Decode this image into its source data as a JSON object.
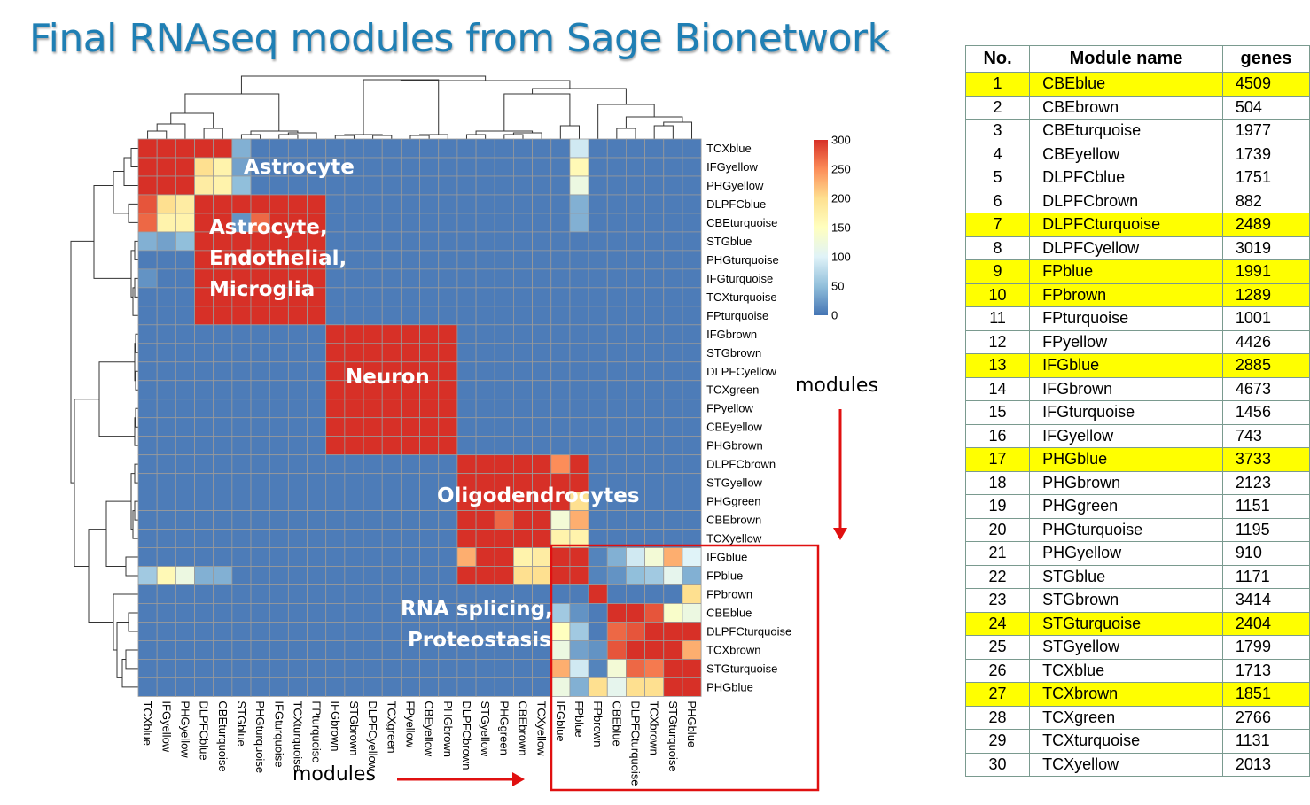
{
  "page": {
    "title": "Final RNAseq modules from Sage Bionetwork",
    "annotations": {
      "astrocyte": "Astrocyte",
      "astro_endo_line1": "Astrocyte,",
      "astro_endo_line2": "Endothelial,",
      "astro_endo_line3": "Microglia",
      "neuron": "Neuron",
      "oligo": "Oligodendrocytes",
      "rna_line1": "RNA splicing,",
      "rna_line2": "Proteostasis",
      "modules_right": "modules",
      "modules_bottom": "modules"
    },
    "colors": {
      "title": "#1f7fb4",
      "highlight_box": "#e01010",
      "arrow": "#e01010",
      "row_highlight": "#ffff00"
    }
  },
  "chart_data": {
    "type": "heatmap",
    "labels": [
      "TCXblue",
      "IFGyellow",
      "PHGyellow",
      "DLPFCblue",
      "CBEturquoise",
      "STGblue",
      "PHGturquoise",
      "IFGturquoise",
      "TCXturquoise",
      "FPturquoise",
      "IFGbrown",
      "STGbrown",
      "DLPFCyellow",
      "TCXgreen",
      "FPyellow",
      "CBEyellow",
      "PHGbrown",
      "DLPFCbrown",
      "STGyellow",
      "PHGgreen",
      "CBEbrown",
      "TCXyellow",
      "IFGblue",
      "FPblue",
      "FPbrown",
      "CBEblue",
      "DLPFCturquoise",
      "TCXbrown",
      "STGturquoise",
      "PHGblue"
    ],
    "colorbar": {
      "ticks": [
        300,
        250,
        200,
        150,
        100,
        50,
        0
      ],
      "min": 0,
      "max": 300,
      "colors": [
        "#4575b4",
        "#91bfdb",
        "#e0f3f8",
        "#ffffbf",
        "#fee090",
        "#fc8d59",
        "#d73027"
      ]
    },
    "background_value": 5,
    "blocks": [
      {
        "rows": [
          0,
          4
        ],
        "cols": [
          0,
          4
        ],
        "value": 300
      },
      {
        "rows": [
          3,
          9
        ],
        "cols": [
          3,
          9
        ],
        "value": 300
      },
      {
        "rows": [
          10,
          16
        ],
        "cols": [
          10,
          16
        ],
        "value": 300
      },
      {
        "rows": [
          17,
          23
        ],
        "cols": [
          17,
          23
        ],
        "value": 300
      },
      {
        "rows": [
          25,
          29
        ],
        "cols": [
          25,
          29
        ],
        "value": 300
      }
    ],
    "cells": [
      {
        "r": 0,
        "c": 5,
        "v": 40
      },
      {
        "r": 0,
        "c": 23,
        "v": 90
      },
      {
        "r": 1,
        "c": 3,
        "v": 200
      },
      {
        "r": 1,
        "c": 4,
        "v": 170
      },
      {
        "r": 1,
        "c": 5,
        "v": 30
      },
      {
        "r": 1,
        "c": 23,
        "v": 160
      },
      {
        "r": 2,
        "c": 3,
        "v": 180
      },
      {
        "r": 2,
        "c": 4,
        "v": 170
      },
      {
        "r": 2,
        "c": 5,
        "v": 50
      },
      {
        "r": 2,
        "c": 23,
        "v": 120
      },
      {
        "r": 3,
        "c": 0,
        "v": 280
      },
      {
        "r": 3,
        "c": 1,
        "v": 200
      },
      {
        "r": 3,
        "c": 2,
        "v": 180
      },
      {
        "r": 3,
        "c": 23,
        "v": 40
      },
      {
        "r": 4,
        "c": 0,
        "v": 270
      },
      {
        "r": 4,
        "c": 1,
        "v": 170
      },
      {
        "r": 4,
        "c": 2,
        "v": 170
      },
      {
        "r": 4,
        "c": 5,
        "v": 20
      },
      {
        "r": 4,
        "c": 6,
        "v": 270
      },
      {
        "r": 4,
        "c": 23,
        "v": 40
      },
      {
        "r": 5,
        "c": 0,
        "v": 40
      },
      {
        "r": 5,
        "c": 1,
        "v": 30
      },
      {
        "r": 5,
        "c": 2,
        "v": 50
      },
      {
        "r": 5,
        "c": 3,
        "v": 300
      },
      {
        "r": 5,
        "c": 4,
        "v": 300
      },
      {
        "r": 6,
        "c": 4,
        "v": 300
      },
      {
        "r": 7,
        "c": 0,
        "v": 20
      },
      {
        "r": 17,
        "c": 22,
        "v": 250
      },
      {
        "r": 19,
        "c": 22,
        "v": 300
      },
      {
        "r": 19,
        "c": 23,
        "v": 200
      },
      {
        "r": 20,
        "c": 19,
        "v": 270
      },
      {
        "r": 20,
        "c": 22,
        "v": 130
      },
      {
        "r": 20,
        "c": 23,
        "v": 230
      },
      {
        "r": 21,
        "c": 22,
        "v": 170
      },
      {
        "r": 21,
        "c": 23,
        "v": 170
      },
      {
        "r": 22,
        "c": 17,
        "v": 230
      },
      {
        "r": 22,
        "c": 18,
        "v": 300
      },
      {
        "r": 22,
        "c": 19,
        "v": 300
      },
      {
        "r": 22,
        "c": 20,
        "v": 170
      },
      {
        "r": 22,
        "c": 21,
        "v": 180
      },
      {
        "r": 22,
        "c": 22,
        "v": 300
      },
      {
        "r": 22,
        "c": 23,
        "v": 300
      },
      {
        "r": 22,
        "c": 24,
        "v": 10
      },
      {
        "r": 22,
        "c": 25,
        "v": 40
      },
      {
        "r": 22,
        "c": 26,
        "v": 90
      },
      {
        "r": 22,
        "c": 27,
        "v": 130
      },
      {
        "r": 22,
        "c": 28,
        "v": 230
      },
      {
        "r": 22,
        "c": 29,
        "v": 100
      },
      {
        "r": 23,
        "c": 0,
        "v": 60
      },
      {
        "r": 23,
        "c": 1,
        "v": 160
      },
      {
        "r": 23,
        "c": 2,
        "v": 120
      },
      {
        "r": 23,
        "c": 3,
        "v": 40
      },
      {
        "r": 23,
        "c": 4,
        "v": 40
      },
      {
        "r": 23,
        "c": 17,
        "v": 300
      },
      {
        "r": 23,
        "c": 18,
        "v": 300
      },
      {
        "r": 23,
        "c": 19,
        "v": 300
      },
      {
        "r": 23,
        "c": 20,
        "v": 200
      },
      {
        "r": 23,
        "c": 21,
        "v": 200
      },
      {
        "r": 23,
        "c": 22,
        "v": 300
      },
      {
        "r": 23,
        "c": 23,
        "v": 300
      },
      {
        "r": 23,
        "c": 24,
        "v": 10
      },
      {
        "r": 23,
        "c": 25,
        "v": 20
      },
      {
        "r": 23,
        "c": 26,
        "v": 50
      },
      {
        "r": 23,
        "c": 27,
        "v": 60
      },
      {
        "r": 23,
        "c": 28,
        "v": 110
      },
      {
        "r": 23,
        "c": 29,
        "v": 40
      },
      {
        "r": 24,
        "c": 24,
        "v": 300
      },
      {
        "r": 24,
        "c": 29,
        "v": 200
      },
      {
        "r": 25,
        "c": 22,
        "v": 60
      },
      {
        "r": 25,
        "c": 23,
        "v": 20
      },
      {
        "r": 25,
        "c": 27,
        "v": 280
      },
      {
        "r": 25,
        "c": 28,
        "v": 140
      },
      {
        "r": 25,
        "c": 29,
        "v": 120
      },
      {
        "r": 26,
        "c": 22,
        "v": 150
      },
      {
        "r": 26,
        "c": 23,
        "v": 60
      },
      {
        "r": 26,
        "c": 25,
        "v": 270
      },
      {
        "r": 26,
        "c": 26,
        "v": 280
      },
      {
        "r": 27,
        "c": 22,
        "v": 120
      },
      {
        "r": 27,
        "c": 23,
        "v": 30
      },
      {
        "r": 27,
        "c": 24,
        "v": 20
      },
      {
        "r": 27,
        "c": 25,
        "v": 280
      },
      {
        "r": 27,
        "c": 29,
        "v": 230
      },
      {
        "r": 28,
        "c": 22,
        "v": 230
      },
      {
        "r": 28,
        "c": 23,
        "v": 90
      },
      {
        "r": 28,
        "c": 24,
        "v": 10
      },
      {
        "r": 28,
        "c": 25,
        "v": 130
      },
      {
        "r": 28,
        "c": 26,
        "v": 270
      },
      {
        "r": 28,
        "c": 27,
        "v": 260
      },
      {
        "r": 29,
        "c": 22,
        "v": 120
      },
      {
        "r": 29,
        "c": 23,
        "v": 40
      },
      {
        "r": 29,
        "c": 24,
        "v": 200
      },
      {
        "r": 29,
        "c": 25,
        "v": 110
      },
      {
        "r": 29,
        "c": 26,
        "v": 200
      },
      {
        "r": 29,
        "c": 27,
        "v": 200
      }
    ]
  },
  "table": {
    "headers": [
      "No.",
      "Module name",
      "genes"
    ],
    "rows": [
      {
        "no": "1",
        "name": "CBEblue",
        "genes": "4509",
        "highlight": true
      },
      {
        "no": "2",
        "name": "CBEbrown",
        "genes": "504",
        "highlight": false
      },
      {
        "no": "3",
        "name": "CBEturquoise",
        "genes": "1977",
        "highlight": false
      },
      {
        "no": "4",
        "name": "CBEyellow",
        "genes": "1739",
        "highlight": false
      },
      {
        "no": "5",
        "name": "DLPFCblue",
        "genes": "1751",
        "highlight": false
      },
      {
        "no": "6",
        "name": "DLPFCbrown",
        "genes": "882",
        "highlight": false
      },
      {
        "no": "7",
        "name": "DLPFCturquoise",
        "genes": "2489",
        "highlight": true
      },
      {
        "no": "8",
        "name": "DLPFCyellow",
        "genes": "3019",
        "highlight": false
      },
      {
        "no": "9",
        "name": "FPblue",
        "genes": "1991",
        "highlight": true
      },
      {
        "no": "10",
        "name": "FPbrown",
        "genes": "1289",
        "highlight": true
      },
      {
        "no": "11",
        "name": "FPturquoise",
        "genes": "1001",
        "highlight": false
      },
      {
        "no": "12",
        "name": "FPyellow",
        "genes": "4426",
        "highlight": false
      },
      {
        "no": "13",
        "name": "IFGblue",
        "genes": "2885",
        "highlight": true
      },
      {
        "no": "14",
        "name": "IFGbrown",
        "genes": "4673",
        "highlight": false
      },
      {
        "no": "15",
        "name": "IFGturquoise",
        "genes": "1456",
        "highlight": false
      },
      {
        "no": "16",
        "name": "IFGyellow",
        "genes": "743",
        "highlight": false
      },
      {
        "no": "17",
        "name": "PHGblue",
        "genes": "3733",
        "highlight": true
      },
      {
        "no": "18",
        "name": "PHGbrown",
        "genes": "2123",
        "highlight": false
      },
      {
        "no": "19",
        "name": "PHGgreen",
        "genes": "1151",
        "highlight": false
      },
      {
        "no": "20",
        "name": "PHGturquoise",
        "genes": "1195",
        "highlight": false
      },
      {
        "no": "21",
        "name": "PHGyellow",
        "genes": "910",
        "highlight": false
      },
      {
        "no": "22",
        "name": "STGblue",
        "genes": "1171",
        "highlight": false
      },
      {
        "no": "23",
        "name": "STGbrown",
        "genes": "3414",
        "highlight": false
      },
      {
        "no": "24",
        "name": "STGturquoise",
        "genes": "2404",
        "highlight": true
      },
      {
        "no": "25",
        "name": "STGyellow",
        "genes": "1799",
        "highlight": false
      },
      {
        "no": "26",
        "name": "TCXblue",
        "genes": "1713",
        "highlight": false
      },
      {
        "no": "27",
        "name": "TCXbrown",
        "genes": "1851",
        "highlight": true
      },
      {
        "no": "28",
        "name": "TCXgreen",
        "genes": "2766",
        "highlight": false
      },
      {
        "no": "29",
        "name": "TCXturquoise",
        "genes": "1131",
        "highlight": false
      },
      {
        "no": "30",
        "name": "TCXyellow",
        "genes": "2013",
        "highlight": false
      }
    ]
  }
}
